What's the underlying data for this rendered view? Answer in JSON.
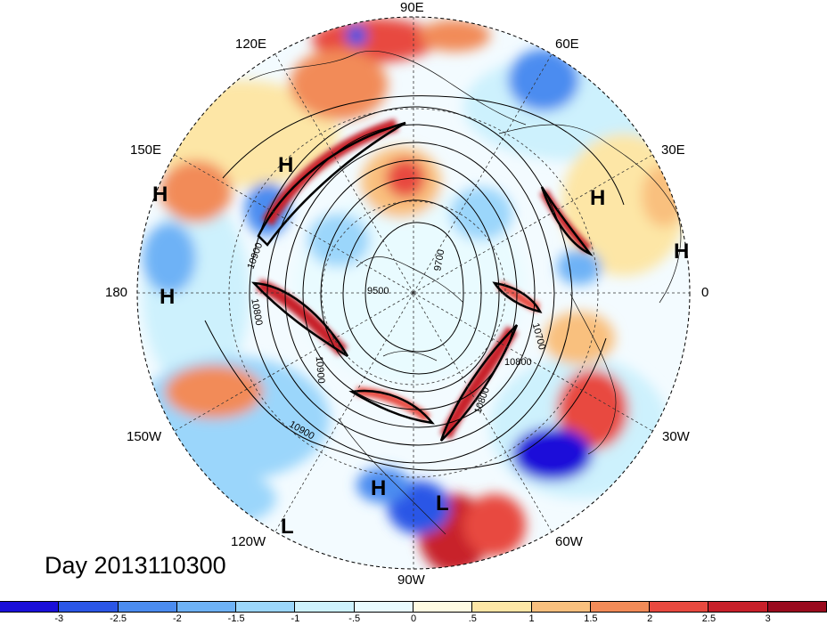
{
  "title": "Day 2013110300",
  "longitude_labels": [
    "90E",
    "60E",
    "30E",
    "0",
    "30W",
    "60W",
    "90W",
    "120W",
    "150W",
    "180",
    "150E",
    "120E"
  ],
  "pressure_centers": [
    {
      "label": "H"
    },
    {
      "label": "H"
    },
    {
      "label": "H"
    },
    {
      "label": "H"
    },
    {
      "label": "H"
    },
    {
      "label": "H"
    },
    {
      "label": "L"
    },
    {
      "label": "L"
    }
  ],
  "contour_labels": [
    "10900",
    "10800",
    "9500",
    "9700",
    "10700",
    "10800",
    "10800",
    "10900",
    "10900"
  ],
  "colorbar": {
    "ticks": [
      "-3",
      "-2.5",
      "-2",
      "-1.5",
      "-1",
      "-.5",
      "0",
      ".5",
      "1",
      "1.5",
      "2",
      "2.5",
      "3"
    ],
    "colors": [
      "#1a0fd9",
      "#2b56e6",
      "#4b8cf0",
      "#6eb2f6",
      "#9bd6fb",
      "#cdf1fd",
      "#e9fbff",
      "#fffbe2",
      "#fde6a6",
      "#f9c07e",
      "#f28b58",
      "#e8493f",
      "#c8202a",
      "#9a0a1e"
    ]
  }
}
